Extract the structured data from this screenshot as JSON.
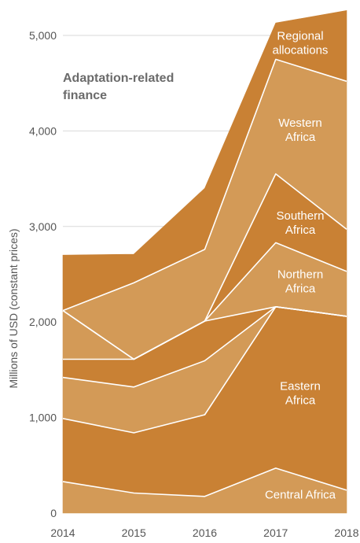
{
  "chart_data": {
    "type": "area",
    "stacked": true,
    "title": "Adaptation-related finance",
    "ylabel": "Millions of USD (constant prices)",
    "xlabel": "",
    "x": [
      "2014",
      "2015",
      "2016",
      "2017",
      "2018"
    ],
    "ylim": [
      0,
      5000
    ],
    "yticks": [
      "0",
      "1,000",
      "2,000",
      "3,000",
      "4,000",
      "5,000"
    ],
    "grid": true,
    "series": [
      {
        "name": "Central Africa",
        "label_lines": [
          "Central Africa"
        ],
        "values": [
          330,
          210,
          175,
          470,
          240
        ],
        "color": "#d39a57"
      },
      {
        "name": "Eastern Africa",
        "label_lines": [
          "Eastern",
          "Africa"
        ],
        "values": [
          660,
          630,
          855,
          1690,
          1820
        ],
        "color": "#c98134"
      },
      {
        "name": "",
        "label_lines": [],
        "values": [
          430,
          480,
          565,
          0,
          0
        ],
        "color": "#d39a57"
      },
      {
        "name": "",
        "label_lines": [],
        "values": [
          190,
          290,
          415,
          0,
          0
        ],
        "color": "#c98134"
      },
      {
        "name": "Northern Africa",
        "label_lines": [
          "Northern",
          "Africa"
        ],
        "values": [
          510,
          0,
          0,
          670,
          470
        ],
        "color": "#d39a57"
      },
      {
        "name": "Southern Africa",
        "label_lines": [
          "Southern",
          "Africa"
        ],
        "values": [
          0,
          0,
          0,
          720,
          440
        ],
        "color": "#c98134"
      },
      {
        "name": "Western Africa",
        "label_lines": [
          "Western",
          "Africa"
        ],
        "values": [
          0,
          800,
          750,
          1200,
          1550
        ],
        "color": "#d39a57"
      },
      {
        "name": "Regional allocations",
        "label_lines": [
          "Regional",
          "allocations"
        ],
        "values": [
          580,
          300,
          640,
          380,
          740
        ],
        "color": "#c98134"
      }
    ]
  }
}
